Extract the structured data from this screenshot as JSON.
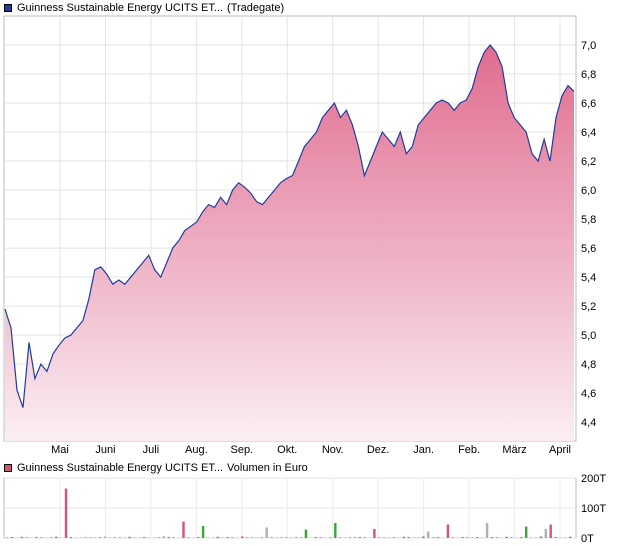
{
  "price_legend": {
    "name": "Guinness Sustainable Energy UCITS ET...",
    "venue": "(Tradegate)",
    "swatch_color": "#1f3c9c"
  },
  "volume_legend": {
    "name": "Guinness Sustainable Energy UCITS ET...",
    "unit": "Volumen in Euro",
    "swatch_color": "#d9536f"
  },
  "chart_data": [
    {
      "type": "area",
      "title": "",
      "ylim": [
        4.27,
        7.2
      ],
      "y_ticks": [
        "7,0",
        "6,8",
        "6,6",
        "6,4",
        "6,2",
        "6,0",
        "5,8",
        "5,6",
        "5,4",
        "5,2",
        "5,0",
        "4,8",
        "4,6",
        "4,4"
      ],
      "x_ticks": [
        "Mai",
        "Juni",
        "Juli",
        "Aug.",
        "Sep.",
        "Okt.",
        "Nov.",
        "Dez.",
        "Jan.",
        "Feb.",
        "März",
        "April"
      ],
      "grid": true,
      "line_color": "#1f3c9c",
      "fill_top_color": "#e06c8f",
      "fill_bottom_color": "#fbeef3",
      "values": [
        5.18,
        5.05,
        4.62,
        4.5,
        4.95,
        4.7,
        4.8,
        4.75,
        4.87,
        4.93,
        4.98,
        5.0,
        5.05,
        5.1,
        5.25,
        5.45,
        5.47,
        5.42,
        5.35,
        5.38,
        5.35,
        5.4,
        5.45,
        5.5,
        5.55,
        5.45,
        5.4,
        5.5,
        5.6,
        5.65,
        5.72,
        5.75,
        5.78,
        5.85,
        5.9,
        5.88,
        5.95,
        5.9,
        6.0,
        6.05,
        6.02,
        5.98,
        5.92,
        5.9,
        5.95,
        6.0,
        6.05,
        6.08,
        6.1,
        6.2,
        6.3,
        6.35,
        6.4,
        6.5,
        6.55,
        6.6,
        6.5,
        6.55,
        6.45,
        6.3,
        6.1,
        6.2,
        6.3,
        6.4,
        6.35,
        6.3,
        6.4,
        6.25,
        6.3,
        6.45,
        6.5,
        6.55,
        6.6,
        6.62,
        6.6,
        6.55,
        6.6,
        6.62,
        6.7,
        6.85,
        6.95,
        7.0,
        6.95,
        6.85,
        6.6,
        6.5,
        6.45,
        6.4,
        6.25,
        6.2,
        6.35,
        6.2,
        6.5,
        6.65,
        6.72,
        6.68
      ]
    },
    {
      "type": "bar",
      "title": "",
      "ylim": [
        0,
        200
      ],
      "y_ticks": [
        "200T",
        "100T",
        "0T"
      ],
      "grid": true,
      "values": [
        2,
        3,
        1,
        4,
        2,
        1,
        3,
        2,
        1,
        2,
        4,
        1,
        165,
        3,
        2,
        1,
        2,
        3,
        1,
        2,
        5,
        1,
        2,
        3,
        1,
        4,
        2,
        1,
        3,
        2,
        1,
        2,
        6,
        3,
        2,
        1,
        55,
        2,
        1,
        3,
        40,
        2,
        1,
        4,
        2,
        3,
        2,
        1,
        5,
        2,
        3,
        1,
        2,
        35,
        2,
        1,
        3,
        2,
        1,
        4,
        2,
        28,
        1,
        3,
        2,
        1,
        2,
        50,
        3,
        1,
        2,
        4,
        3,
        2,
        1,
        30,
        2,
        3,
        1,
        2,
        1,
        4,
        3,
        2,
        1,
        5,
        22,
        2,
        3,
        1,
        45,
        2,
        1,
        3,
        2,
        2,
        3,
        1,
        50,
        3,
        2,
        1,
        4,
        2,
        1,
        3,
        38,
        2,
        1,
        5,
        30,
        45,
        3,
        2,
        1,
        4
      ]
    }
  ]
}
